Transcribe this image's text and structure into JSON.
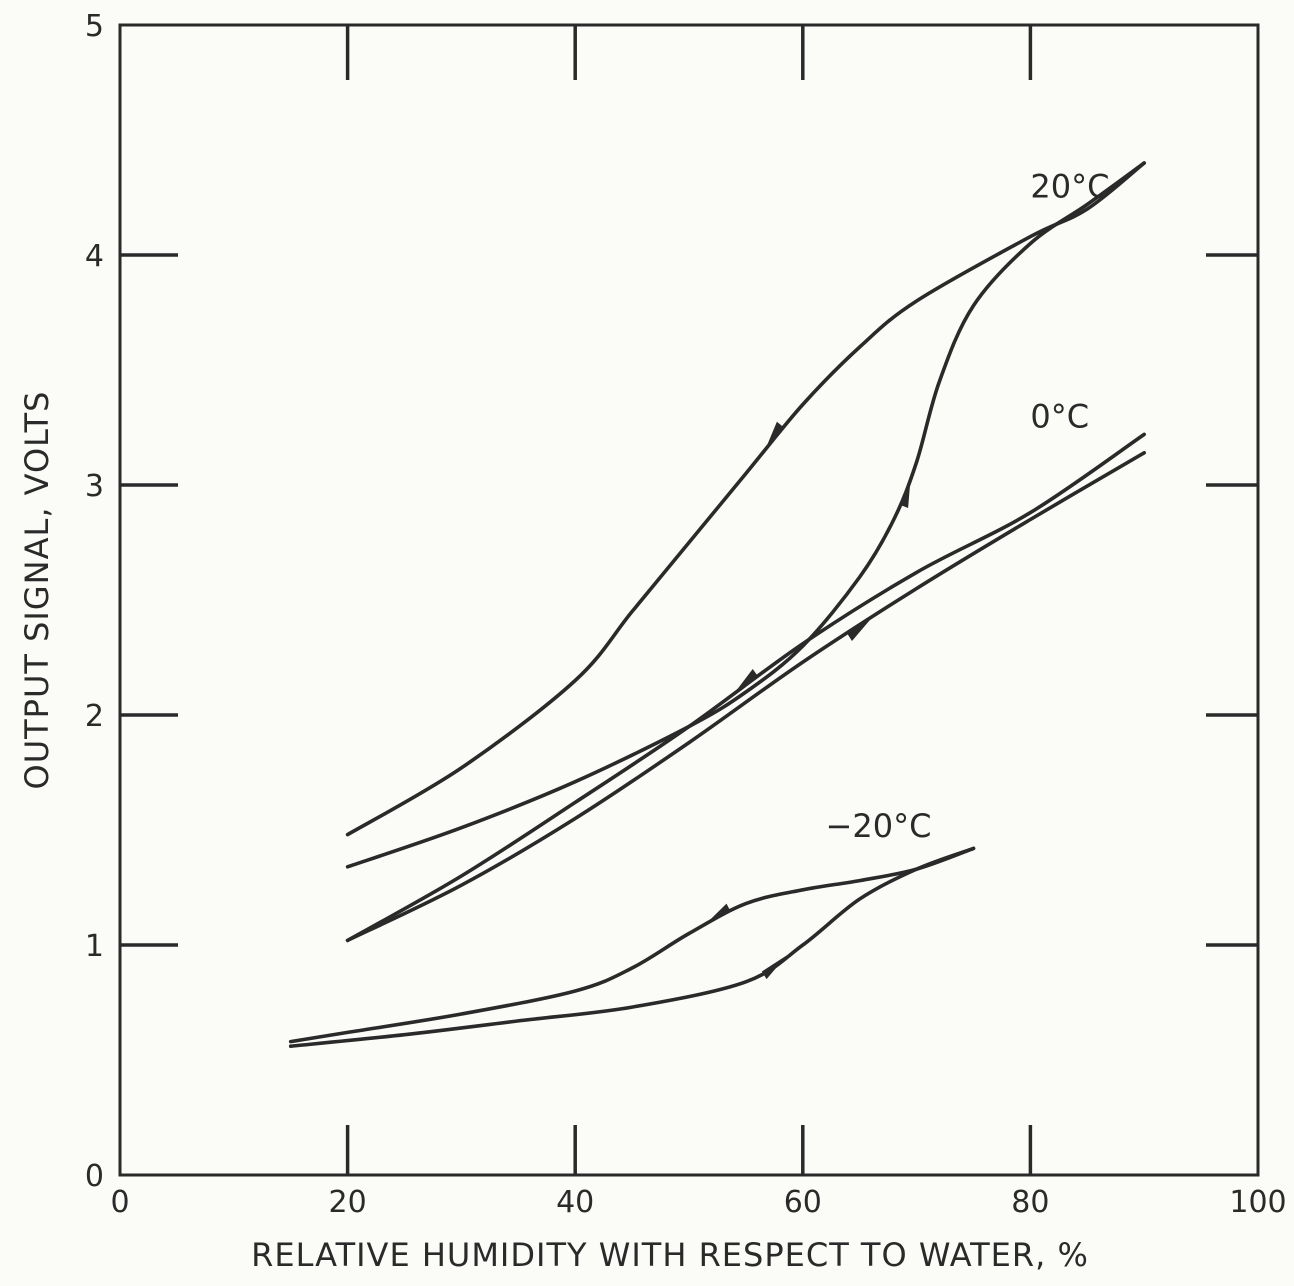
{
  "chart_data": {
    "type": "line",
    "title": "",
    "xlabel": "RELATIVE HUMIDITY WITH RESPECT TO WATER, %",
    "ylabel": "OUTPUT SIGNAL, VOLTS",
    "xlim": [
      0,
      100
    ],
    "ylim": [
      0,
      5
    ],
    "x_ticks": [
      "0",
      "20",
      "40",
      "60",
      "80",
      "100"
    ],
    "y_ticks": [
      "0",
      "1",
      "2",
      "3",
      "4",
      "5"
    ],
    "grid": false,
    "series": [
      {
        "name": "20°C",
        "label_at": [
          80,
          4.25
        ],
        "branches": [
          {
            "direction": "increasing RH",
            "x": [
              20,
              30,
              40,
              50,
              55,
              60,
              65,
              68,
              70,
              72,
              75,
              80,
              85,
              90
            ],
            "y": [
              1.34,
              1.51,
              1.71,
              1.95,
              2.1,
              2.3,
              2.6,
              2.85,
              3.1,
              3.45,
              3.78,
              4.05,
              4.22,
              4.4
            ]
          },
          {
            "direction": "decreasing RH",
            "x": [
              90,
              85,
              80,
              70,
              65,
              60,
              55,
              50,
              45,
              40,
              30,
              20
            ],
            "y": [
              4.4,
              4.2,
              4.08,
              3.8,
              3.6,
              3.35,
              3.05,
              2.75,
              2.45,
              2.15,
              1.77,
              1.48
            ]
          }
        ]
      },
      {
        "name": "0°C",
        "label_at": [
          80,
          3.25
        ],
        "branches": [
          {
            "direction": "increasing RH",
            "x": [
              20,
              30,
              40,
              50,
              60,
              70,
              80,
              90
            ],
            "y": [
              1.02,
              1.26,
              1.55,
              1.88,
              2.23,
              2.55,
              2.85,
              3.14
            ]
          },
          {
            "direction": "decreasing RH",
            "x": [
              90,
              80,
              70,
              60,
              50,
              40,
              30,
              20
            ],
            "y": [
              3.22,
              2.88,
              2.62,
              2.31,
              1.95,
              1.62,
              1.3,
              1.02
            ]
          }
        ]
      },
      {
        "name": "−20°C",
        "label_at": [
          62,
          1.47
        ],
        "branches": [
          {
            "direction": "increasing RH",
            "x": [
              15,
              25,
              35,
              45,
              55,
              60,
              65,
              70,
              75
            ],
            "y": [
              0.56,
              0.61,
              0.67,
              0.73,
              0.84,
              1.0,
              1.2,
              1.33,
              1.42
            ]
          },
          {
            "direction": "decreasing RH",
            "x": [
              75,
              70,
              65,
              60,
              55,
              50,
              45,
              40,
              30,
              20,
              15
            ],
            "y": [
              1.42,
              1.33,
              1.28,
              1.24,
              1.18,
              1.05,
              0.9,
              0.8,
              0.7,
              0.62,
              0.58
            ]
          }
        ]
      }
    ]
  }
}
